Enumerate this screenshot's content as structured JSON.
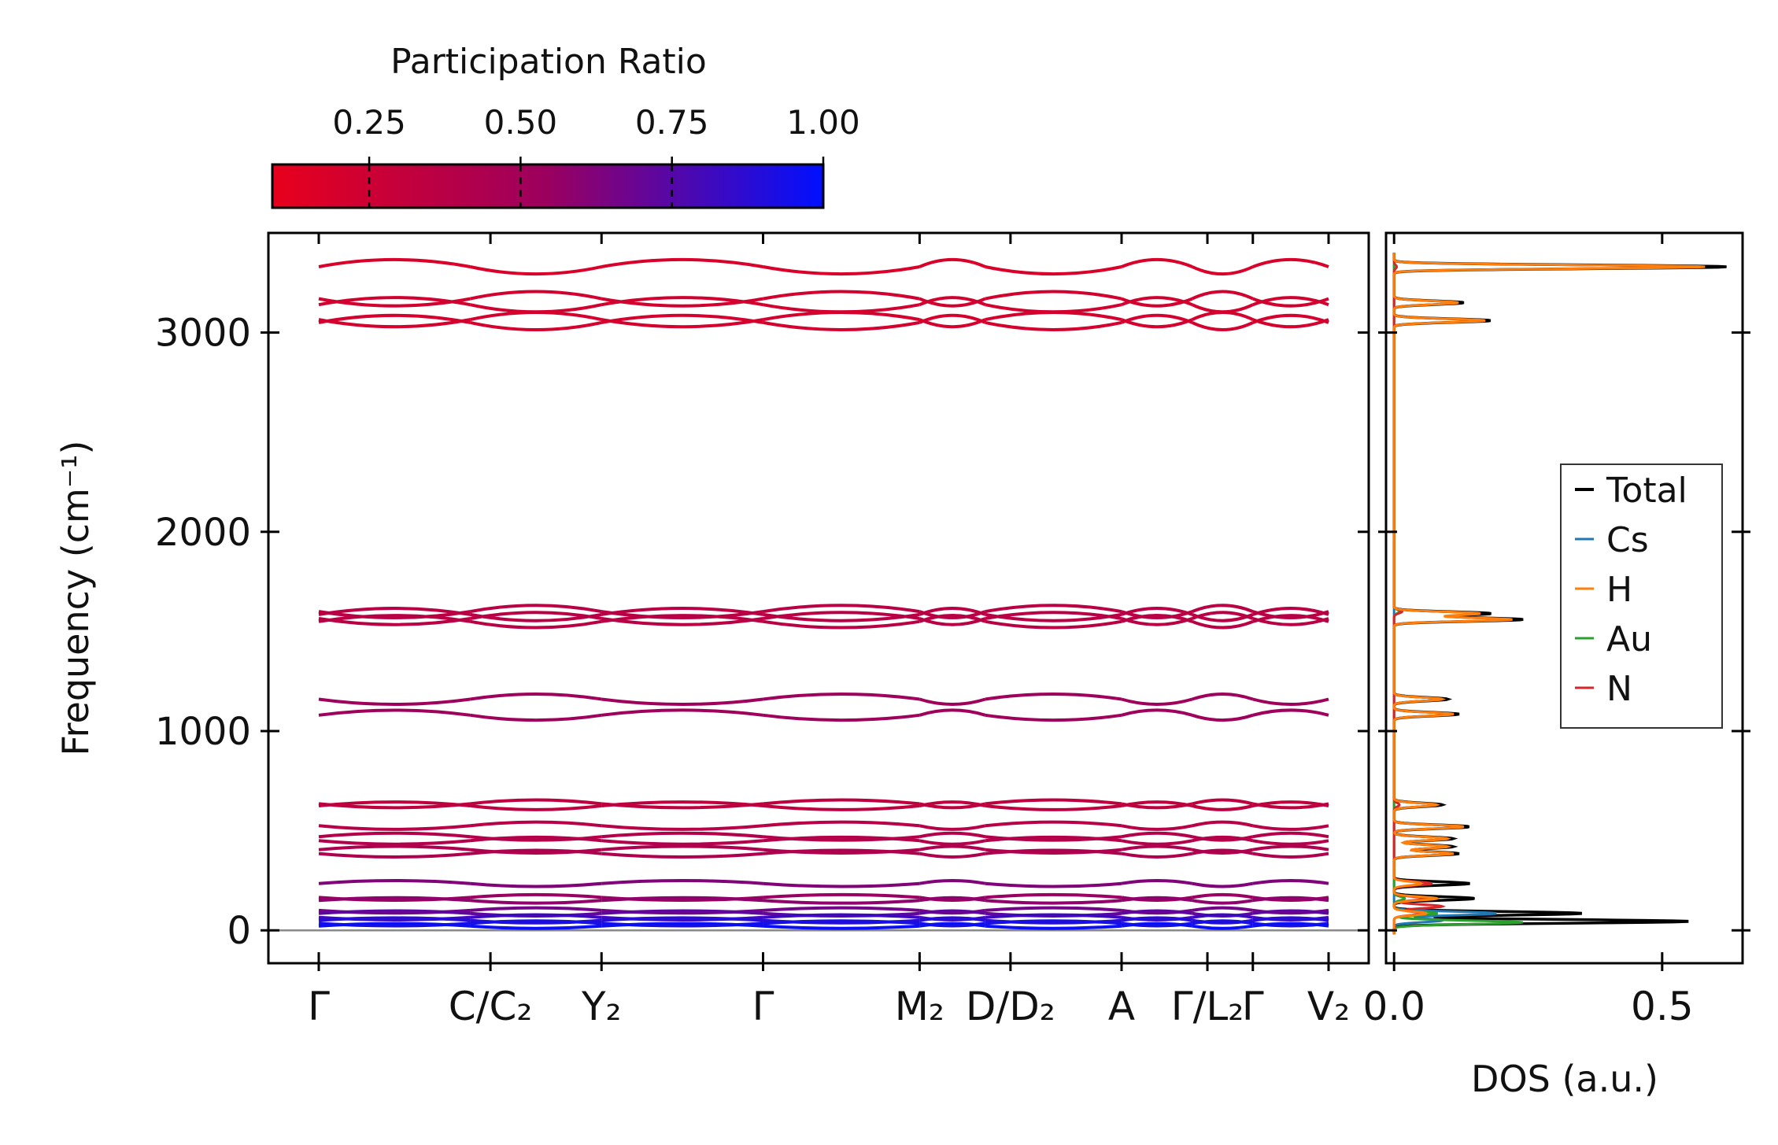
{
  "colorbar": {
    "title": "Participation Ratio",
    "ticks": [
      0.25,
      0.5,
      0.75,
      1.0
    ],
    "tick_labels": [
      "0.25",
      "0.50",
      "0.75",
      "1.00"
    ],
    "range": [
      0.09,
      1.0
    ],
    "colors": {
      "low": "#e8001c",
      "mid": "#9b005f",
      "high": "#0010ff"
    }
  },
  "chart_data": [
    {
      "type": "line",
      "panel": "phonon band structure",
      "ylabel": "Frequency (cm⁻¹)",
      "ylim": [
        -165,
        3500
      ],
      "yticks": [
        0,
        1000,
        2000,
        3000
      ],
      "ytick_labels": [
        "0",
        "1000",
        "2000",
        "3000"
      ],
      "path_labels": [
        {
          "label": "Γ",
          "pos": 0.0
        },
        {
          "label": "C/C₂",
          "pos": 0.17
        },
        {
          "label": "Y₂",
          "pos": 0.28
        },
        {
          "label": "Γ",
          "pos": 0.44
        },
        {
          "label": "M₂",
          "pos": 0.595
        },
        {
          "label": "D/D₂",
          "pos": 0.685
        },
        {
          "label": "A",
          "pos": 0.795
        },
        {
          "label": "Γ/L₂",
          "pos": 0.88
        },
        {
          "label": "Γ",
          "pos": 0.925
        },
        {
          "label": "V₂",
          "pos": 1.0
        }
      ],
      "segment_breaks": [
        0.0,
        0.15,
        0.28,
        0.44,
        0.595,
        0.66,
        0.795,
        0.865,
        0.925,
        1.0
      ],
      "bands": [
        {
          "freq": 3330,
          "pr": 0.18
        },
        {
          "freq": 3170,
          "pr": 0.22
        },
        {
          "freq": 3140,
          "pr": 0.22
        },
        {
          "freq": 3065,
          "pr": 0.21
        },
        {
          "freq": 3050,
          "pr": 0.21
        },
        {
          "freq": 1600,
          "pr": 0.36
        },
        {
          "freq": 1585,
          "pr": 0.36
        },
        {
          "freq": 1565,
          "pr": 0.37
        },
        {
          "freq": 1550,
          "pr": 0.37
        },
        {
          "freq": 1160,
          "pr": 0.52
        },
        {
          "freq": 1080,
          "pr": 0.52
        },
        {
          "freq": 635,
          "pr": 0.33
        },
        {
          "freq": 625,
          "pr": 0.33
        },
        {
          "freq": 525,
          "pr": 0.38
        },
        {
          "freq": 470,
          "pr": 0.4
        },
        {
          "freq": 450,
          "pr": 0.4
        },
        {
          "freq": 405,
          "pr": 0.43
        },
        {
          "freq": 385,
          "pr": 0.43
        },
        {
          "freq": 235,
          "pr": 0.62
        },
        {
          "freq": 165,
          "pr": 0.55
        },
        {
          "freq": 150,
          "pr": 0.58
        },
        {
          "freq": 100,
          "pr": 0.66
        },
        {
          "freq": 85,
          "pr": 0.72
        },
        {
          "freq": 65,
          "pr": 0.82
        },
        {
          "freq": 50,
          "pr": 0.88
        },
        {
          "freq": 35,
          "pr": 0.93
        },
        {
          "freq": 22,
          "pr": 0.97
        }
      ]
    },
    {
      "type": "line",
      "panel": "density of states",
      "xlabel": "DOS (a.u.)",
      "xlim": [
        -0.015,
        0.65
      ],
      "xticks": [
        0.0,
        0.5
      ],
      "xtick_labels": [
        "0.0",
        "0.5"
      ],
      "ylim": [
        -165,
        3500
      ],
      "legend_position": "center-right",
      "legend": [
        "Total",
        "Cs",
        "H",
        "Au",
        "N"
      ],
      "series_colors": {
        "Total": "#000000",
        "Cs": "#1f77b4",
        "H": "#ff7f0e",
        "Au": "#2ca02c",
        "N": "#d62728"
      },
      "series": [
        {
          "name": "Total",
          "peaks": [
            [
              3330,
              0.62
            ],
            [
              3150,
              0.13
            ],
            [
              3060,
              0.18
            ],
            [
              1590,
              0.18
            ],
            [
              1560,
              0.24
            ],
            [
              1160,
              0.1
            ],
            [
              1085,
              0.12
            ],
            [
              630,
              0.09
            ],
            [
              520,
              0.14
            ],
            [
              460,
              0.11
            ],
            [
              420,
              0.11
            ],
            [
              385,
              0.12
            ],
            [
              235,
              0.14
            ],
            [
              160,
              0.15
            ],
            [
              85,
              0.35
            ],
            [
              45,
              0.55
            ]
          ]
        },
        {
          "name": "Cs",
          "peaks": [
            [
              85,
              0.19
            ],
            [
              50,
              0.09
            ]
          ]
        },
        {
          "name": "H",
          "peaks": [
            [
              3330,
              0.58
            ],
            [
              3150,
              0.12
            ],
            [
              3060,
              0.17
            ],
            [
              1590,
              0.16
            ],
            [
              1560,
              0.22
            ],
            [
              1160,
              0.09
            ],
            [
              1085,
              0.11
            ],
            [
              630,
              0.08
            ],
            [
              520,
              0.13
            ],
            [
              460,
              0.1
            ],
            [
              420,
              0.1
            ],
            [
              385,
              0.11
            ],
            [
              235,
              0.05
            ],
            [
              160,
              0.08
            ],
            [
              85,
              0.06
            ]
          ]
        },
        {
          "name": "Au",
          "peaks": [
            [
              1600,
              0.01
            ],
            [
              160,
              0.02
            ],
            [
              85,
              0.08
            ],
            [
              40,
              0.24
            ]
          ]
        },
        {
          "name": "N",
          "peaks": [
            [
              3330,
              0.005
            ],
            [
              1600,
              0.015
            ],
            [
              630,
              0.01
            ],
            [
              235,
              0.07
            ],
            [
              160,
              0.06
            ],
            [
              120,
              0.09
            ],
            [
              85,
              0.05
            ]
          ]
        }
      ]
    }
  ]
}
